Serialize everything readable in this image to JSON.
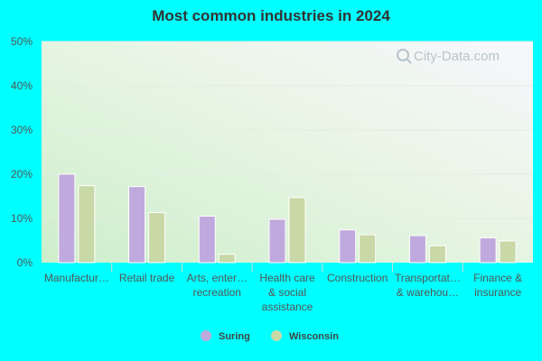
{
  "chart_data": {
    "type": "bar",
    "title": "Most common industries in 2024",
    "categories": [
      [
        "Manufactur…"
      ],
      [
        "Retail trade"
      ],
      [
        "Arts, enter…",
        "recreation"
      ],
      [
        "Health care",
        "& social",
        "assistance"
      ],
      [
        "Construction"
      ],
      [
        "Transportat…",
        "& warehou…"
      ],
      [
        "Finance &",
        "insurance"
      ]
    ],
    "series": [
      {
        "name": "Suring",
        "color": "#c0aadd",
        "values": [
          20.0,
          17.2,
          10.5,
          9.8,
          7.4,
          6.1,
          5.6
        ]
      },
      {
        "name": "Wisconsin",
        "color": "#c8d8a6",
        "values": [
          17.4,
          11.3,
          1.9,
          14.7,
          6.3,
          3.8,
          4.9
        ]
      }
    ],
    "y_ticks": [
      "0%",
      "10%",
      "20%",
      "30%",
      "40%",
      "50%"
    ],
    "ylim": [
      0,
      50
    ],
    "grid": true,
    "legend_position": "bottom-center",
    "watermark": "City-Data.com"
  }
}
